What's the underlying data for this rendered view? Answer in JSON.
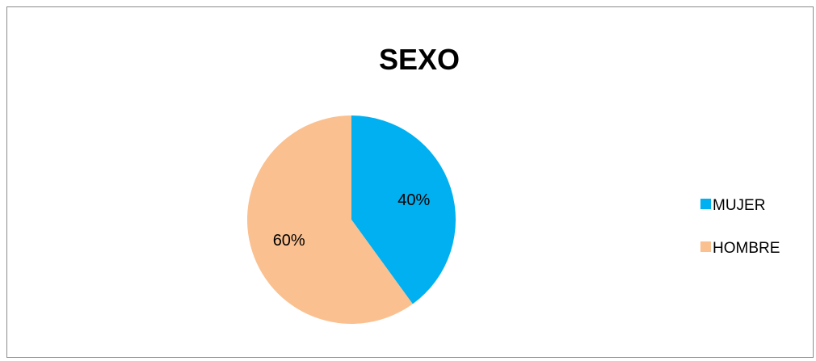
{
  "chart_data": {
    "type": "pie",
    "title": "SEXO",
    "categories": [
      "MUJER",
      "HOMBRE"
    ],
    "values": [
      40,
      60
    ],
    "labels": [
      "40%",
      "60%"
    ],
    "colors": [
      "#00B0F0",
      "#FAC090"
    ],
    "legend_placement": "right",
    "start_angle": "12 o'clock",
    "direction": "clockwise"
  }
}
